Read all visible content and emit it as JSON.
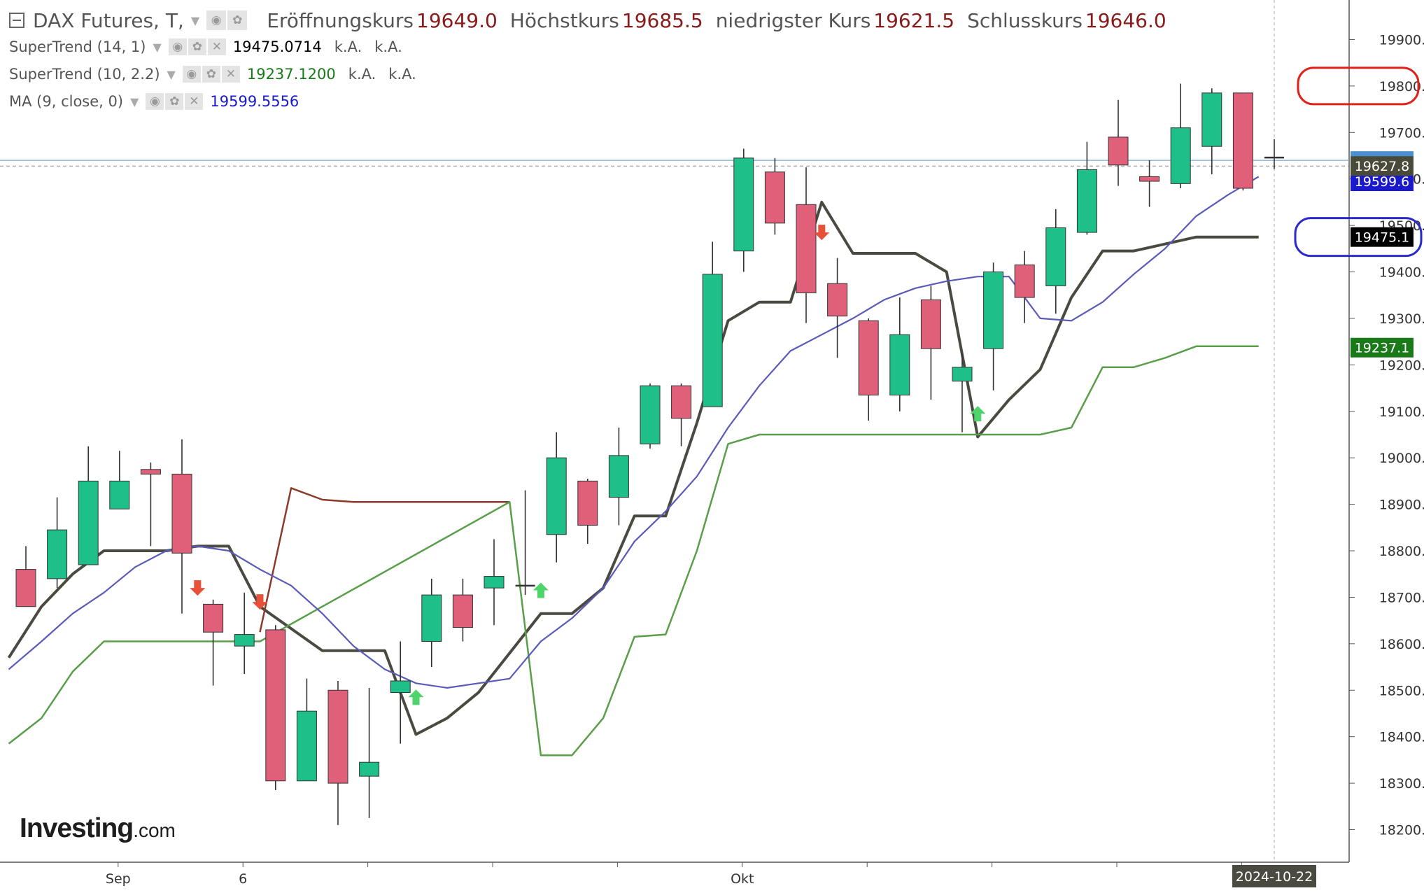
{
  "legend": {
    "main": {
      "title": "DAX Futures, T,",
      "open_label": "Eröffnungskurs",
      "open": "19649.0",
      "high_label": "Höchstkurs",
      "high": "19685.5",
      "low_label": "niedrigster Kurs",
      "low": "19621.5",
      "close_label": "Schlusskurs",
      "close": "19646.0"
    },
    "indicators": [
      {
        "label": "SuperTrend (14, 1)",
        "value": "19475.0714",
        "value_color": "#000000",
        "extra1": "k.A.",
        "extra2": "k.A."
      },
      {
        "label": "SuperTrend (10, 2.2)",
        "value": "19237.1200",
        "value_color": "#1a7a1a",
        "extra1": "k.A.",
        "extra2": "k.A."
      },
      {
        "label": "MA (9, close, 0)",
        "value": "19599.5556",
        "value_color": "#1a1acc"
      }
    ]
  },
  "brand": {
    "name": "Investing",
    "suffix": ".com"
  },
  "price_badges": [
    {
      "value": "19627.8",
      "bg": "#4a4a3a",
      "fg": "#ffffff",
      "note": "last price"
    },
    {
      "value": "19599.6",
      "bg": "#1a1acc",
      "fg": "#ffffff",
      "note": "MA"
    },
    {
      "value": "19475.1",
      "bg": "#000000",
      "fg": "#ffffff",
      "note": "SuperTrend 14,1"
    },
    {
      "value": "19237.1",
      "bg": "#1a7a1a",
      "fg": "#ffffff",
      "note": "SuperTrend 10,2.2"
    }
  ],
  "crosshair_date_label": "2024-10-22",
  "colors": {
    "up_candle": "#1fbf8a",
    "down_candle": "#e0607a",
    "ma": "#5a5ab8",
    "supertrend14_down": "#4a4a40",
    "supertrend14_up": "#8b3a2a",
    "supertrend10": "#5a9e4a",
    "annotation_red": "#e0201a",
    "annotation_blue": "#2a2acc"
  },
  "chart_data": {
    "type": "candlestick",
    "title": "",
    "x_ticks": [
      "Sep",
      "6",
      "Okt"
    ],
    "y_ticks": [
      18200,
      18300,
      18400,
      18500,
      18600,
      18700,
      18800,
      18900,
      19000,
      19100,
      19200,
      19300,
      19400,
      19500,
      19600,
      19700,
      19800,
      19900
    ],
    "ylim": [
      18130,
      19985
    ],
    "grid": false,
    "candles": [
      {
        "o": 18760,
        "h": 18810,
        "l": 18680,
        "c": 18680
      },
      {
        "o": 18740,
        "h": 18915,
        "l": 18720,
        "c": 18845
      },
      {
        "o": 18770,
        "h": 19025,
        "l": 18770,
        "c": 18950
      },
      {
        "o": 18890,
        "h": 19015,
        "l": 18890,
        "c": 18950
      },
      {
        "o": 18975,
        "h": 18990,
        "l": 18810,
        "c": 18965
      },
      {
        "o": 18965,
        "h": 19040,
        "l": 18665,
        "c": 18795
      },
      {
        "o": 18685,
        "h": 18695,
        "l": 18510,
        "c": 18625
      },
      {
        "o": 18595,
        "h": 18710,
        "l": 18535,
        "c": 18620
      },
      {
        "o": 18630,
        "h": 18640,
        "l": 18285,
        "c": 18305
      },
      {
        "o": 18305,
        "h": 18525,
        "l": 18305,
        "c": 18455
      },
      {
        "o": 18500,
        "h": 18520,
        "l": 18210,
        "c": 18300
      },
      {
        "o": 18315,
        "h": 18505,
        "l": 18225,
        "c": 18345
      },
      {
        "o": 18495,
        "h": 18605,
        "l": 18385,
        "c": 18520
      },
      {
        "o": 18605,
        "h": 18740,
        "l": 18550,
        "c": 18705
      },
      {
        "o": 18705,
        "h": 18740,
        "l": 18605,
        "c": 18635
      },
      {
        "o": 18720,
        "h": 18825,
        "l": 18640,
        "c": 18745
      },
      {
        "o": 18725,
        "h": 18930,
        "l": 18705,
        "c": 18725
      },
      {
        "o": 18835,
        "h": 19055,
        "l": 18775,
        "c": 19000
      },
      {
        "o": 18950,
        "h": 18955,
        "l": 18815,
        "c": 18855
      },
      {
        "o": 18915,
        "h": 19065,
        "l": 18855,
        "c": 19005
      },
      {
        "o": 19030,
        "h": 19160,
        "l": 19020,
        "c": 19155
      },
      {
        "o": 19155,
        "h": 19160,
        "l": 19025,
        "c": 19085
      },
      {
        "o": 19110,
        "h": 19465,
        "l": 19110,
        "c": 19395
      },
      {
        "o": 19445,
        "h": 19665,
        "l": 19400,
        "c": 19645
      },
      {
        "o": 19615,
        "h": 19645,
        "l": 19480,
        "c": 19505
      },
      {
        "o": 19545,
        "h": 19625,
        "l": 19290,
        "c": 19355
      },
      {
        "o": 19375,
        "h": 19430,
        "l": 19215,
        "c": 19305
      },
      {
        "o": 19295,
        "h": 19300,
        "l": 19080,
        "c": 19135
      },
      {
        "o": 19135,
        "h": 19345,
        "l": 19100,
        "c": 19265
      },
      {
        "o": 19340,
        "h": 19370,
        "l": 19125,
        "c": 19235
      },
      {
        "o": 19165,
        "h": 19225,
        "l": 19055,
        "c": 19195
      },
      {
        "o": 19235,
        "h": 19420,
        "l": 19145,
        "c": 19400
      },
      {
        "o": 19415,
        "h": 19445,
        "l": 19290,
        "c": 19345
      },
      {
        "o": 19370,
        "h": 19535,
        "l": 19310,
        "c": 19495
      },
      {
        "o": 19485,
        "h": 19680,
        "l": 19480,
        "c": 19620
      },
      {
        "o": 19690,
        "h": 19770,
        "l": 19585,
        "c": 19630
      },
      {
        "o": 19605,
        "h": 19640,
        "l": 19540,
        "c": 19595
      },
      {
        "o": 19590,
        "h": 19805,
        "l": 19580,
        "c": 19710
      },
      {
        "o": 19670,
        "h": 19795,
        "l": 19610,
        "c": 19785
      },
      {
        "o": 19785,
        "h": 19785,
        "l": 19575,
        "c": 19580
      },
      {
        "o": 19649,
        "h": 19685.5,
        "l": 19621.5,
        "c": 19646
      }
    ],
    "series": [
      {
        "name": "SuperTrend (14, 1)",
        "values": [
          {
            "i": -0.55,
            "v": 18570
          },
          {
            "i": 0.5,
            "v": 18680
          },
          {
            "i": 1.5,
            "v": 18750
          },
          {
            "i": 2.5,
            "v": 18800
          },
          {
            "i": 4.5,
            "v": 18800
          },
          {
            "i": 5.5,
            "v": 18810
          },
          {
            "i": 6.5,
            "v": 18810
          },
          {
            "i": 7.5,
            "v": 18680
          },
          {
            "i": 9.5,
            "v": 18585
          },
          {
            "i": 11.5,
            "v": 18585
          },
          {
            "i": 12.5,
            "v": 18405
          },
          {
            "i": 13.5,
            "v": 18440
          },
          {
            "i": 14.5,
            "v": 18495
          },
          {
            "i": 16.5,
            "v": 18665
          },
          {
            "i": 17.5,
            "v": 18665
          },
          {
            "i": 18.5,
            "v": 18720
          },
          {
            "i": 19.5,
            "v": 18875
          },
          {
            "i": 20.5,
            "v": 18875
          },
          {
            "i": 21.5,
            "v": 19075
          },
          {
            "i": 22.5,
            "v": 19295
          },
          {
            "i": 23.5,
            "v": 19335
          },
          {
            "i": 24.5,
            "v": 19335
          },
          {
            "i": 25.5,
            "v": 19550
          },
          {
            "i": 26.5,
            "v": 19440
          },
          {
            "i": 28.5,
            "v": 19440
          },
          {
            "i": 29.5,
            "v": 19400
          },
          {
            "i": 30.5,
            "v": 19045
          },
          {
            "i": 31.5,
            "v": 19125
          },
          {
            "i": 32.5,
            "v": 19190
          },
          {
            "i": 33.5,
            "v": 19345
          },
          {
            "i": 34.5,
            "v": 19445
          },
          {
            "i": 35.5,
            "v": 19445
          },
          {
            "i": 37.5,
            "v": 19475
          },
          {
            "i": 39.5,
            "v": 19475
          }
        ]
      },
      {
        "name": "SuperTrend (14, 1) Widerstand",
        "values": [
          {
            "i": 7.5,
            "v": 18625
          },
          {
            "i": 8.5,
            "v": 18935
          },
          {
            "i": 9.5,
            "v": 18910
          },
          {
            "i": 10.5,
            "v": 18905
          },
          {
            "i": 15.5,
            "v": 18905
          }
        ]
      },
      {
        "name": "SuperTrend (10, 2.2)",
        "values": [
          {
            "i": -0.55,
            "v": 18385
          },
          {
            "i": 0.5,
            "v": 18440
          },
          {
            "i": 1.5,
            "v": 18540
          },
          {
            "i": 2.5,
            "v": 18605
          },
          {
            "i": 7.5,
            "v": 18605
          },
          {
            "i": 15.5,
            "v": 18905
          },
          {
            "i": 16.5,
            "v": 18360
          },
          {
            "i": 17.5,
            "v": 18360
          },
          {
            "i": 18.5,
            "v": 18440
          },
          {
            "i": 19.5,
            "v": 18615
          },
          {
            "i": 20.5,
            "v": 18620
          },
          {
            "i": 21.5,
            "v": 18800
          },
          {
            "i": 22.5,
            "v": 19030
          },
          {
            "i": 23.5,
            "v": 19050
          },
          {
            "i": 32.5,
            "v": 19050
          },
          {
            "i": 33.5,
            "v": 19065
          },
          {
            "i": 34.5,
            "v": 19195
          },
          {
            "i": 35.5,
            "v": 19195
          },
          {
            "i": 36.5,
            "v": 19215
          },
          {
            "i": 37.5,
            "v": 19240
          },
          {
            "i": 39.5,
            "v": 19240
          }
        ]
      },
      {
        "name": "MA (9, close, 0)",
        "values": [
          {
            "i": -0.55,
            "v": 18545
          },
          {
            "i": 0.5,
            "v": 18605
          },
          {
            "i": 1.5,
            "v": 18665
          },
          {
            "i": 2.5,
            "v": 18710
          },
          {
            "i": 3.5,
            "v": 18765
          },
          {
            "i": 4.5,
            "v": 18800
          },
          {
            "i": 5.5,
            "v": 18810
          },
          {
            "i": 6.5,
            "v": 18800
          },
          {
            "i": 7.5,
            "v": 18760
          },
          {
            "i": 8.5,
            "v": 18725
          },
          {
            "i": 9.5,
            "v": 18665
          },
          {
            "i": 10.5,
            "v": 18595
          },
          {
            "i": 11.5,
            "v": 18545
          },
          {
            "i": 12.5,
            "v": 18515
          },
          {
            "i": 13.5,
            "v": 18505
          },
          {
            "i": 14.5,
            "v": 18515
          },
          {
            "i": 15.5,
            "v": 18525
          },
          {
            "i": 16.5,
            "v": 18605
          },
          {
            "i": 17.5,
            "v": 18655
          },
          {
            "i": 18.5,
            "v": 18720
          },
          {
            "i": 19.5,
            "v": 18820
          },
          {
            "i": 20.5,
            "v": 18885
          },
          {
            "i": 21.5,
            "v": 18960
          },
          {
            "i": 22.5,
            "v": 19065
          },
          {
            "i": 23.5,
            "v": 19155
          },
          {
            "i": 24.5,
            "v": 19230
          },
          {
            "i": 25.5,
            "v": 19265
          },
          {
            "i": 26.5,
            "v": 19300
          },
          {
            "i": 27.5,
            "v": 19340
          },
          {
            "i": 28.5,
            "v": 19365
          },
          {
            "i": 29.5,
            "v": 19380
          },
          {
            "i": 30.5,
            "v": 19390
          },
          {
            "i": 31.5,
            "v": 19390
          },
          {
            "i": 32.5,
            "v": 19300
          },
          {
            "i": 33.5,
            "v": 19295
          },
          {
            "i": 34.5,
            "v": 19335
          },
          {
            "i": 35.5,
            "v": 19395
          },
          {
            "i": 36.5,
            "v": 19450
          },
          {
            "i": 37.5,
            "v": 19520
          },
          {
            "i": 38.5,
            "v": 19565
          },
          {
            "i": 39.5,
            "v": 19605
          }
        ]
      }
    ],
    "signals": [
      {
        "i": 5.5,
        "dir": "down",
        "v": 18720
      },
      {
        "i": 7.5,
        "dir": "down",
        "v": 18690
      },
      {
        "i": 12.5,
        "dir": "up",
        "v": 18485
      },
      {
        "i": 16.5,
        "dir": "up",
        "v": 18715
      },
      {
        "i": 25.5,
        "dir": "down",
        "v": 19485
      },
      {
        "i": 30.5,
        "dir": "up",
        "v": 19095
      }
    ],
    "price_levels": {
      "last_price": 19627.8,
      "blue_dotted": 19640
    },
    "annotations": [
      {
        "shape": "ellipse",
        "color": "red",
        "around_value": 19800
      },
      {
        "shape": "ellipse",
        "color": "blue",
        "around_value": 19475.1
      }
    ]
  }
}
